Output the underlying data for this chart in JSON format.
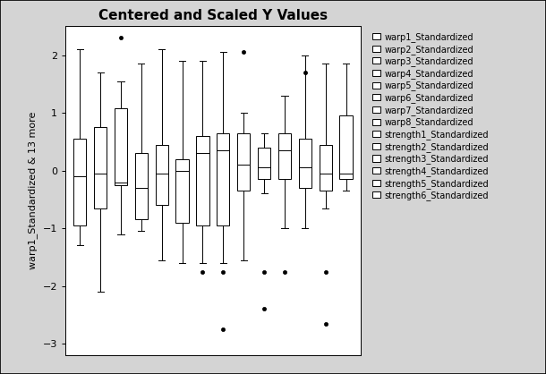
{
  "title": "Centered and Scaled Y Values",
  "ylabel": "warp1_Standardized & 13 more",
  "ylim": [
    -3.2,
    2.5
  ],
  "yticks": [
    -3,
    -2,
    -1,
    0,
    1,
    2
  ],
  "legend_labels": [
    "warp1_Standardized",
    "warp2_Standardized",
    "warp3_Standardized",
    "warp4_Standardized",
    "warp5_Standardized",
    "warp6_Standardized",
    "warp7_Standardized",
    "warp8_Standardized",
    "strength1_Standardized",
    "strength2_Standardized",
    "strength3_Standardized",
    "strength4_Standardized",
    "strength5_Standardized",
    "strength6_Standardized"
  ],
  "boxes": [
    {
      "whislo": -1.3,
      "q1": -0.95,
      "med": -0.1,
      "q3": 0.55,
      "whishi": 2.1,
      "fliers": []
    },
    {
      "whislo": -2.1,
      "q1": -0.65,
      "med": -0.05,
      "q3": 0.75,
      "whishi": 1.7,
      "fliers": []
    },
    {
      "whislo": -1.1,
      "q1": -0.25,
      "med": -0.2,
      "q3": 1.08,
      "whishi": 1.55,
      "fliers": [
        2.3
      ]
    },
    {
      "whislo": -1.05,
      "q1": -0.85,
      "med": -0.3,
      "q3": 0.3,
      "whishi": 1.85,
      "fliers": []
    },
    {
      "whislo": -1.55,
      "q1": -0.6,
      "med": -0.05,
      "q3": 0.45,
      "whishi": 2.1,
      "fliers": []
    },
    {
      "whislo": -1.6,
      "q1": -0.9,
      "med": 0.0,
      "q3": 0.2,
      "whishi": 1.9,
      "fliers": []
    },
    {
      "whislo": -1.6,
      "q1": -0.95,
      "med": 0.3,
      "q3": 0.6,
      "whishi": 1.9,
      "fliers": [
        -1.75
      ]
    },
    {
      "whislo": -1.6,
      "q1": -0.95,
      "med": 0.35,
      "q3": 0.65,
      "whishi": 2.05,
      "fliers": [
        -1.75,
        -2.75
      ]
    },
    {
      "whislo": -1.55,
      "q1": -0.35,
      "med": 0.1,
      "q3": 0.65,
      "whishi": 1.0,
      "fliers": [
        2.05
      ]
    },
    {
      "whislo": -0.4,
      "q1": -0.15,
      "med": 0.05,
      "q3": 0.4,
      "whishi": 0.65,
      "fliers": [
        -1.75,
        -2.4
      ]
    },
    {
      "whislo": -1.0,
      "q1": -0.15,
      "med": 0.35,
      "q3": 0.65,
      "whishi": 1.3,
      "fliers": [
        -1.75
      ]
    },
    {
      "whislo": -1.0,
      "q1": -0.3,
      "med": 0.05,
      "q3": 0.55,
      "whishi": 2.0,
      "fliers": [
        1.7
      ]
    },
    {
      "whislo": -0.65,
      "q1": -0.35,
      "med": -0.05,
      "q3": 0.45,
      "whishi": 1.85,
      "fliers": [
        -1.75,
        -2.65
      ]
    },
    {
      "whislo": -0.35,
      "q1": -0.15,
      "med": -0.05,
      "q3": 0.95,
      "whishi": 1.85,
      "fliers": []
    }
  ],
  "box_color": "#ffffff",
  "edge_color": "#000000",
  "whisker_color": "#000000",
  "median_color": "#000000",
  "flier_color": "#000000",
  "background_color": "#d4d4d4",
  "plot_background": "#ffffff",
  "title_fontsize": 11,
  "label_fontsize": 8,
  "legend_fontsize": 7,
  "figure_width": 6.1,
  "figure_height": 4.18,
  "figure_dpi": 100
}
